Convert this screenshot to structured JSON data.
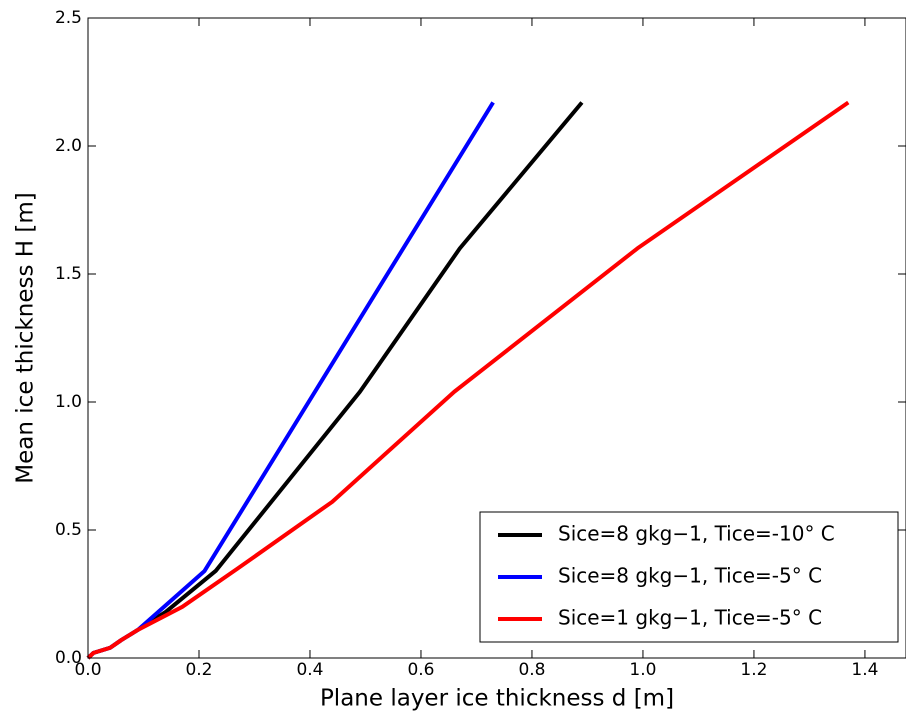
{
  "chart_data": {
    "type": "line",
    "xlabel": "Plane layer ice thickness d [m]",
    "ylabel": "Mean ice thickness H [m]",
    "xlim": [
      0,
      1.474
    ],
    "ylim": [
      0,
      2.5
    ],
    "xticks": [
      {
        "value": 0,
        "label": "0.0"
      },
      0.2,
      0.4,
      0.6,
      0.8,
      {
        "value": 1,
        "label": "1.0"
      },
      1.2,
      1.4
    ],
    "yticks": [
      {
        "value": 0,
        "label": "0.0"
      },
      0.5,
      {
        "value": 1,
        "label": "1.0"
      },
      1.5,
      {
        "value": 2,
        "label": "2.0"
      },
      2.5
    ],
    "legend": "lower right",
    "series": [
      {
        "name": "Sice=8 gkg−1, Tice=-10° C",
        "color": "#000000",
        "x": [
          0,
          0.01,
          0.04,
          0.06,
          0.09,
          0.14,
          0.23,
          0.49,
          0.67,
          0.89
        ],
        "values": [
          0,
          0.02,
          0.04,
          0.07,
          0.11,
          0.18,
          0.34,
          1.04,
          1.6,
          2.17
        ]
      },
      {
        "name": "Sice=8 gkg−1, Tice=-5° C",
        "color": "#0000ff",
        "x": [
          0,
          0.01,
          0.04,
          0.06,
          0.09,
          0.21,
          0.73
        ],
        "values": [
          0,
          0.02,
          0.04,
          0.07,
          0.11,
          0.34,
          2.17
        ]
      },
      {
        "name": "Sice=1 gkg−1, Tice=-5° C",
        "color": "#ff0000",
        "x": [
          0,
          0.01,
          0.04,
          0.06,
          0.09,
          0.17,
          0.27,
          0.44,
          0.66,
          0.99,
          1.37
        ],
        "values": [
          0,
          0.02,
          0.04,
          0.07,
          0.11,
          0.2,
          0.35,
          0.61,
          1.04,
          1.6,
          2.17
        ]
      }
    ]
  }
}
